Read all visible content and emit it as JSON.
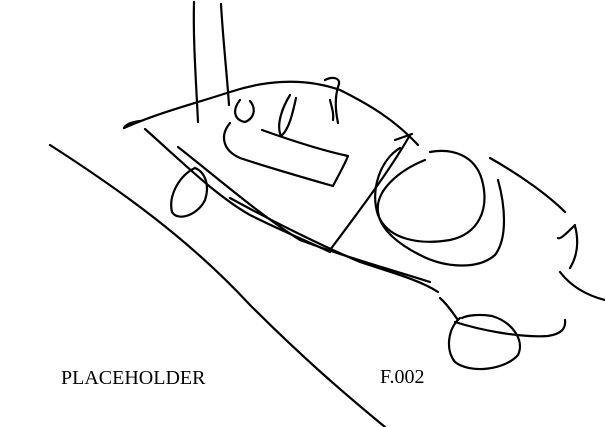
{
  "sketch": {
    "subject": "car-sketch",
    "stroke_color": "#000000",
    "background_color": "#ffffff"
  },
  "labels": {
    "placeholder_text": "PLACEHOLDER",
    "figure_code": "F.002"
  }
}
